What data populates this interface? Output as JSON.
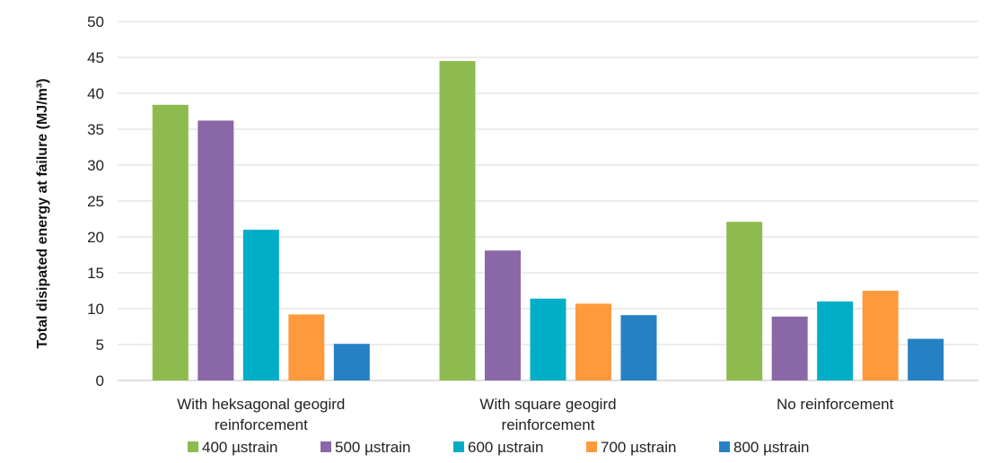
{
  "chart_data": {
    "type": "bar",
    "categories": [
      [
        "With heksagonal geogird",
        "reinforcement"
      ],
      [
        "With square geogird",
        "reinforcement"
      ],
      [
        "No reinforcement"
      ]
    ],
    "series": [
      {
        "name": "400 µstrain",
        "color": "#8DBB4F",
        "values": [
          38.4,
          44.5,
          22.1
        ]
      },
      {
        "name": "500 µstrain",
        "color": "#8A67A6",
        "values": [
          36.2,
          18.1,
          8.9
        ]
      },
      {
        "name": "600 µstrain",
        "color": "#00AEC7",
        "values": [
          21.0,
          11.4,
          11.0
        ]
      },
      {
        "name": "700 µstrain",
        "color": "#FF9A3C",
        "values": [
          9.2,
          10.7,
          12.5
        ]
      },
      {
        "name": "800 µstrain",
        "color": "#2581C4",
        "values": [
          5.1,
          9.1,
          5.8
        ]
      }
    ],
    "title": "",
    "xlabel": "",
    "ylabel": "Total disipated energy at failure (MJ/m³)",
    "ylim": [
      0,
      50
    ],
    "yticks": [
      0,
      5,
      10,
      15,
      20,
      25,
      30,
      35,
      40,
      45,
      50
    ],
    "grid": true,
    "legend": "bottom"
  }
}
